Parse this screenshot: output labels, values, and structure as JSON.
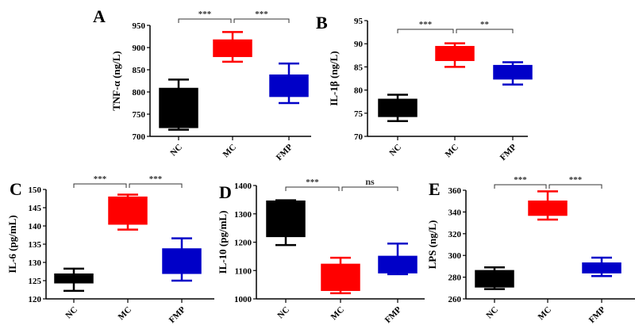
{
  "colors": {
    "NC": "#000000",
    "MC": "#ff0000",
    "FMP": "#0000c8"
  },
  "chart_data": [
    {
      "type": "box",
      "panel": "A",
      "ylabel": "TNF-α (ng/L)",
      "ylim": [
        700,
        950
      ],
      "yticks": [
        700,
        750,
        800,
        850,
        900,
        950
      ],
      "categories": [
        "NC",
        "MC",
        "FMP"
      ],
      "boxes": [
        {
          "min": 715,
          "q1": 720,
          "q3": 808,
          "max": 828
        },
        {
          "min": 868,
          "q1": 880,
          "q3": 917,
          "max": 935
        },
        {
          "min": 775,
          "q1": 790,
          "q3": 838,
          "max": 864
        }
      ],
      "significance": [
        "***",
        "***"
      ]
    },
    {
      "type": "box",
      "panel": "B",
      "ylabel": "IL-1β (ng/L)",
      "ylim": [
        70,
        95
      ],
      "yticks": [
        70,
        75,
        80,
        85,
        90,
        95
      ],
      "categories": [
        "NC",
        "MC",
        "FMP"
      ],
      "boxes": [
        {
          "min": 73.3,
          "q1": 74.3,
          "q3": 78,
          "max": 79
        },
        {
          "min": 85,
          "q1": 86.4,
          "q3": 89.4,
          "max": 90.1
        },
        {
          "min": 81.2,
          "q1": 82.4,
          "q3": 85.3,
          "max": 86
        }
      ],
      "significance": [
        "***",
        "**"
      ]
    },
    {
      "type": "box",
      "panel": "C",
      "ylabel": "IL-6 (pg/mL)",
      "ylim": [
        120,
        150
      ],
      "yticks": [
        120,
        125,
        130,
        135,
        140,
        145,
        150
      ],
      "categories": [
        "NC",
        "MC",
        "FMP"
      ],
      "boxes": [
        {
          "min": 122.2,
          "q1": 124.4,
          "q3": 126.8,
          "max": 128.3
        },
        {
          "min": 139,
          "q1": 140.5,
          "q3": 147.9,
          "max": 148.6
        },
        {
          "min": 125,
          "q1": 127,
          "q3": 133.7,
          "max": 136.6
        }
      ],
      "significance": [
        "***",
        "***"
      ]
    },
    {
      "type": "box",
      "panel": "D",
      "ylabel": "IL-10 (pg/mL)",
      "ylim": [
        1000,
        1400
      ],
      "yticks": [
        1000,
        1100,
        1200,
        1300,
        1400
      ],
      "categories": [
        "NC",
        "MC",
        "FMP"
      ],
      "boxes": [
        {
          "min": 1190,
          "q1": 1220,
          "q3": 1345,
          "max": 1348
        },
        {
          "min": 1020,
          "q1": 1030,
          "q3": 1122,
          "max": 1145
        },
        {
          "min": 1087,
          "q1": 1092,
          "q3": 1150,
          "max": 1195
        }
      ],
      "significance": [
        "***",
        "ns"
      ]
    },
    {
      "type": "box",
      "panel": "E",
      "ylabel": "LPS (ng/L)",
      "ylim": [
        260,
        360
      ],
      "yticks": [
        260,
        280,
        300,
        320,
        340,
        360
      ],
      "categories": [
        "NC",
        "MC",
        "FMP"
      ],
      "boxes": [
        {
          "min": 269,
          "q1": 271,
          "q3": 286,
          "max": 289
        },
        {
          "min": 333,
          "q1": 337,
          "q3": 350,
          "max": 359
        },
        {
          "min": 281,
          "q1": 284,
          "q3": 293,
          "max": 298
        }
      ],
      "significance": [
        "***",
        "***"
      ]
    }
  ]
}
